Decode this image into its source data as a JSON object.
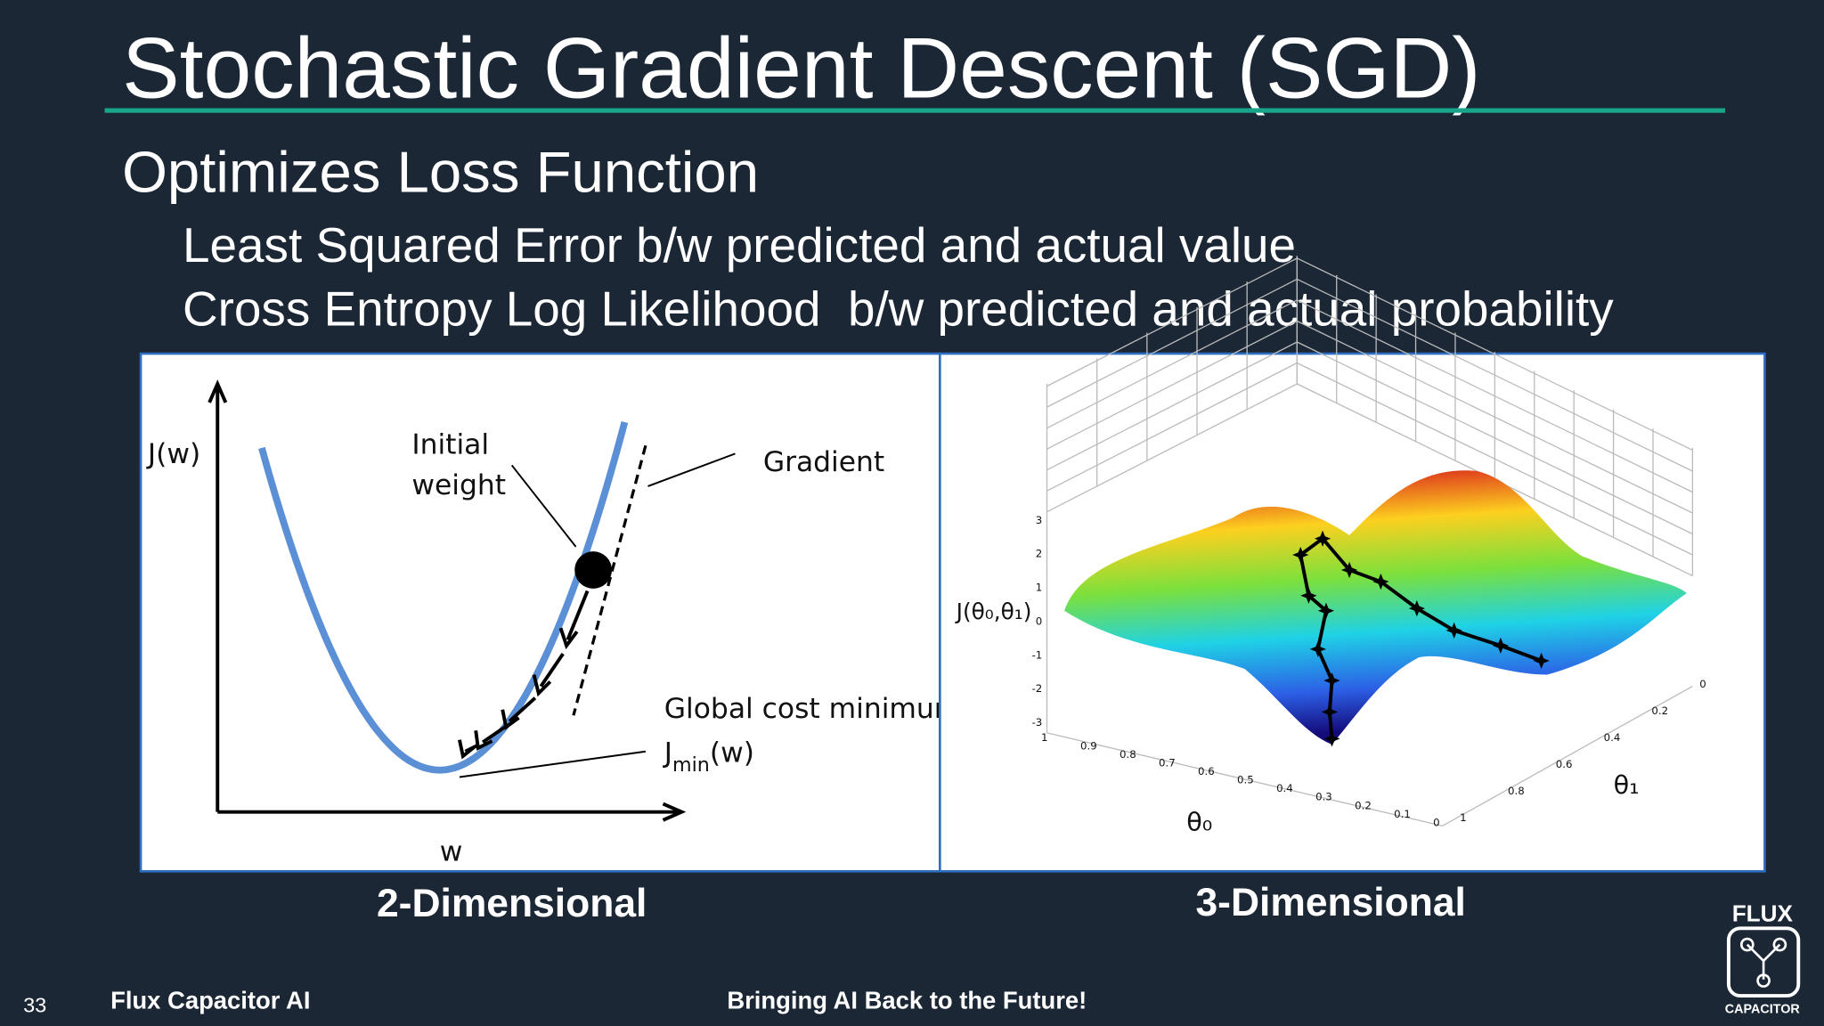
{
  "title": "Stochastic Gradient Descent (SGD)",
  "subtitle": "Optimizes Loss Function",
  "bullets": [
    "Least Squared Error b/w predicted and actual value",
    "Cross Entropy Log Likelihood  b/w predicted and actual probability"
  ],
  "figures": [
    {
      "caption": "2-Dimensional",
      "y_label": "J(w)",
      "x_label": "w",
      "initial": [
        "Initial",
        "weight"
      ],
      "gradient": "Gradient",
      "minimum": "Global cost minimum",
      "jmin": {
        "main": "J",
        "sub": "min",
        "tail": "(w)"
      }
    },
    {
      "caption": "3-Dimensional",
      "z_label": "J(θ₀,θ₁)",
      "x_label": "θ₀",
      "y_label": "θ₁",
      "z_ticks": [
        "3",
        "2",
        "1",
        "0",
        "-1",
        "-2",
        "-3"
      ],
      "x_ticks": [
        "1",
        "0.9",
        "0.8",
        "0.7",
        "0.6",
        "0.5",
        "0.4",
        "0.3",
        "0.2",
        "0.1",
        "0"
      ],
      "y_ticks": [
        "1",
        "0.8",
        "0.6",
        "0.4",
        "0.2",
        "0"
      ]
    }
  ],
  "footer": {
    "page_number": 33,
    "company": "Flux Capacitor AI",
    "tagline": "Bringing AI Back to the Future!"
  },
  "logo": {
    "top": "FLUX",
    "bottom": "CAPACITOR"
  }
}
